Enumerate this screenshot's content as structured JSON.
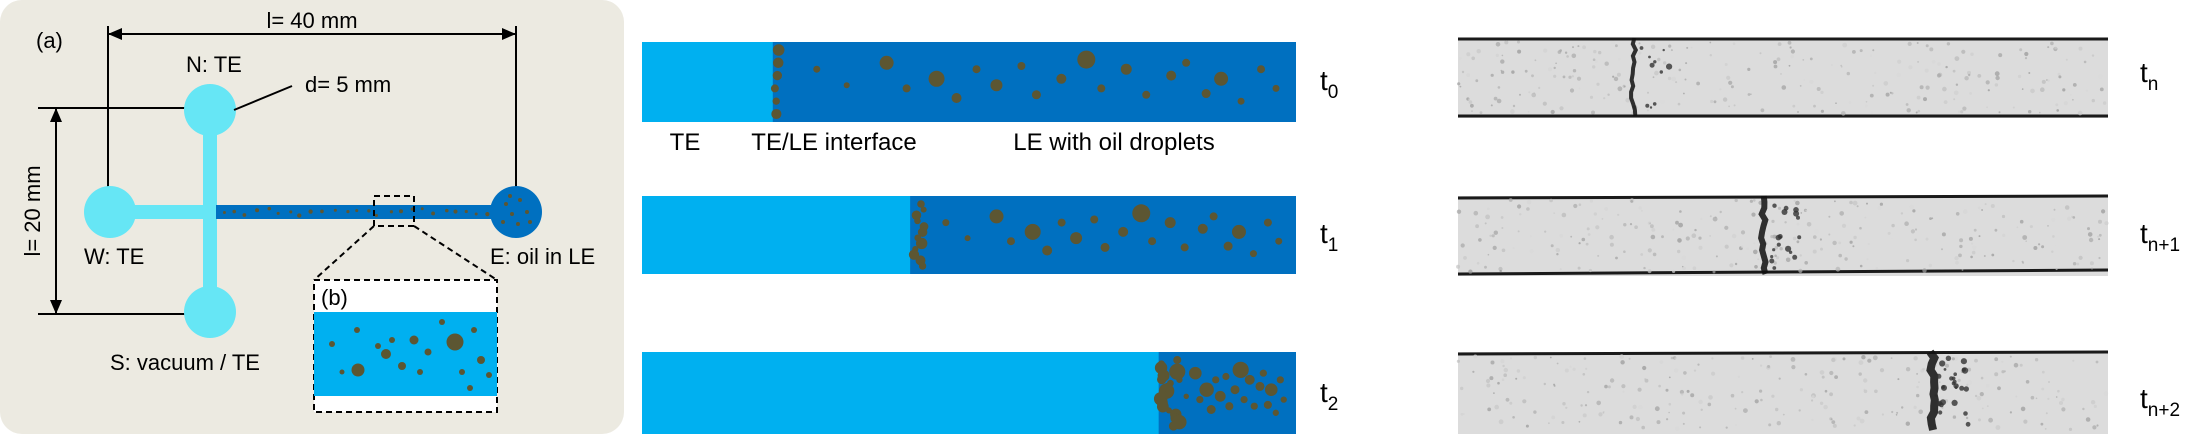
{
  "panel_a": {
    "tag": "(a)",
    "length_top": "l= 40 mm",
    "length_side": "l= 20 mm",
    "diameter": "d= 5 mm",
    "reservoir_n": "N: TE",
    "reservoir_w": "W: TE",
    "reservoir_s": "S: vacuum / TE",
    "reservoir_e": "E: oil in LE",
    "inset_tag": "(b)"
  },
  "schematic": {
    "label_te": "TE",
    "label_interface": "TE/LE interface",
    "label_le": "LE with oil droplets",
    "times": [
      {
        "base": "t",
        "sub": "0",
        "interface_fraction": 0.2
      },
      {
        "base": "t",
        "sub": "1",
        "interface_fraction": 0.41
      },
      {
        "base": "t",
        "sub": "2",
        "interface_fraction": 0.79
      }
    ]
  },
  "micrographs": {
    "times": [
      {
        "base": "t",
        "sub": "n",
        "front_fraction": 0.27
      },
      {
        "base": "t",
        "sub": "n+1",
        "front_fraction": 0.47
      },
      {
        "base": "t",
        "sub": "n+2",
        "front_fraction": 0.73
      }
    ]
  },
  "colors": {
    "panel_bg": "#ECEAE1",
    "te": "#00B0F0",
    "le": "#0070C0",
    "droplet": "#5C5632",
    "reservoir": "#66E6F5",
    "micrograph_bg": "#DCDCDC"
  }
}
